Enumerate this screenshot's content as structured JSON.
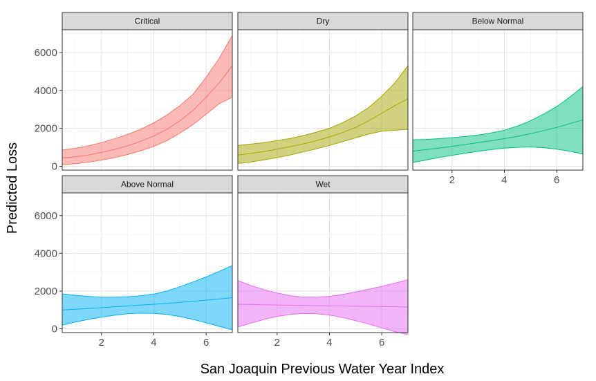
{
  "chart_data": {
    "type": "area",
    "facet_layout": "3 columns, 2 rows, shared axes",
    "xlabel": "San Joaquin Previous Water Year Index",
    "ylabel": "Predicted Loss",
    "xlim": [
      0.5,
      7.0
    ],
    "ylim": [
      -200,
      7200
    ],
    "x_ticks": [
      2,
      4,
      6
    ],
    "y_ticks": [
      0,
      2000,
      4000,
      6000
    ],
    "grid": true,
    "legend": "none",
    "series_style": "fitted line with shaded confidence band",
    "x": [
      0.5,
      1.0,
      1.5,
      2.0,
      2.5,
      3.0,
      3.5,
      4.0,
      4.5,
      5.0,
      5.5,
      6.0,
      6.5,
      7.0
    ],
    "panels": [
      {
        "name": "Critical",
        "color": "#F8766D",
        "fit": [
          440,
          500,
          600,
          730,
          890,
          1080,
          1320,
          1600,
          1950,
          2400,
          2950,
          3650,
          4400,
          5300
        ],
        "lower": [
          80,
          140,
          220,
          330,
          460,
          620,
          820,
          1050,
          1350,
          1750,
          2200,
          2750,
          3300,
          3650
        ],
        "upper": [
          860,
          950,
          1080,
          1250,
          1450,
          1680,
          1950,
          2300,
          2700,
          3200,
          3800,
          4700,
          5700,
          6900
        ]
      },
      {
        "name": "Dry",
        "color": "#A3A500",
        "fit": [
          600,
          680,
          780,
          900,
          1040,
          1180,
          1350,
          1550,
          1780,
          2050,
          2400,
          2800,
          3200,
          3550
        ],
        "lower": [
          150,
          230,
          340,
          460,
          600,
          760,
          920,
          1100,
          1300,
          1500,
          1700,
          1850,
          1900,
          1950
        ],
        "upper": [
          1100,
          1170,
          1250,
          1350,
          1470,
          1620,
          1800,
          2000,
          2300,
          2650,
          3100,
          3700,
          4400,
          5300
        ]
      },
      {
        "name": "Below Normal",
        "color": "#00BF7D",
        "fit": [
          800,
          880,
          960,
          1050,
          1150,
          1250,
          1350,
          1460,
          1580,
          1720,
          1880,
          2050,
          2250,
          2450
        ],
        "lower": [
          200,
          330,
          460,
          580,
          690,
          790,
          880,
          960,
          1000,
          1020,
          980,
          900,
          800,
          650
        ],
        "upper": [
          1400,
          1420,
          1460,
          1510,
          1570,
          1650,
          1760,
          1900,
          2120,
          2400,
          2750,
          3150,
          3650,
          4200
        ]
      },
      {
        "name": "Above Normal",
        "color": "#00B0F6",
        "fit": [
          1000,
          1040,
          1080,
          1120,
          1170,
          1210,
          1260,
          1300,
          1350,
          1400,
          1460,
          1520,
          1580,
          1650
        ],
        "lower": [
          200,
          360,
          500,
          620,
          720,
          800,
          830,
          820,
          760,
          650,
          500,
          320,
          130,
          -50
        ],
        "upper": [
          1850,
          1780,
          1720,
          1680,
          1680,
          1700,
          1750,
          1840,
          2000,
          2230,
          2480,
          2750,
          3050,
          3350
        ]
      },
      {
        "name": "Wet",
        "color": "#E76BF3",
        "fit": [
          1300,
          1290,
          1270,
          1260,
          1250,
          1240,
          1230,
          1220,
          1210,
          1200,
          1190,
          1180,
          1170,
          1150
        ],
        "lower": [
          100,
          300,
          500,
          650,
          760,
          820,
          800,
          730,
          600,
          430,
          250,
          50,
          -150,
          -300
        ],
        "upper": [
          2550,
          2300,
          2080,
          1900,
          1760,
          1680,
          1680,
          1720,
          1820,
          1950,
          2100,
          2250,
          2420,
          2600
        ]
      }
    ]
  }
}
